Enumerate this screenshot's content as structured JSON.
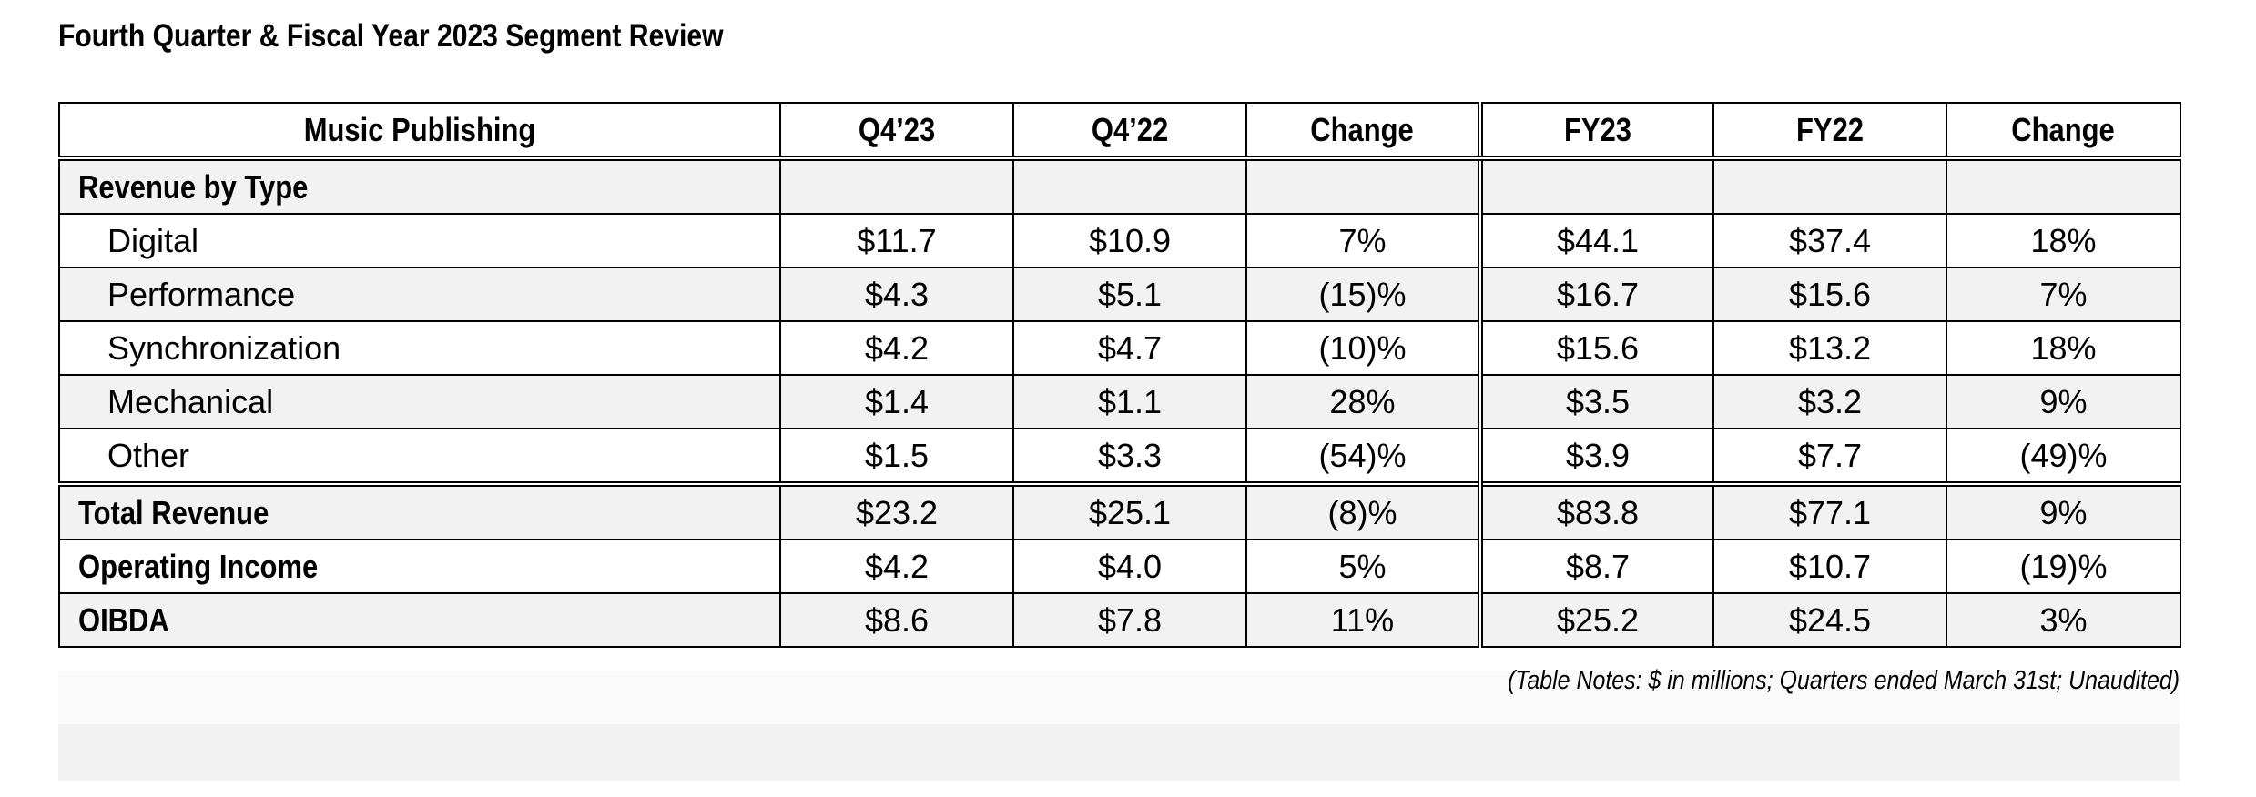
{
  "title": "Fourth Quarter & Fiscal Year 2023 Segment Review",
  "table": {
    "headers": [
      "Music Publishing",
      "Q4’23",
      "Q4’22",
      "Change",
      "FY23",
      "FY22",
      "Change"
    ],
    "section_label": "Revenue by Type",
    "revenue_rows": [
      {
        "label": "Digital",
        "values": [
          "$11.7",
          "$10.9",
          "7%",
          "$44.1",
          "$37.4",
          "18%"
        ]
      },
      {
        "label": "Performance",
        "values": [
          "$4.3",
          "$5.1",
          "(15)%",
          "$16.7",
          "$15.6",
          "7%"
        ]
      },
      {
        "label": "Synchronization",
        "values": [
          "$4.2",
          "$4.7",
          "(10)%",
          "$15.6",
          "$13.2",
          "18%"
        ]
      },
      {
        "label": "Mechanical",
        "values": [
          "$1.4",
          "$1.1",
          "28%",
          "$3.5",
          "$3.2",
          "9%"
        ]
      },
      {
        "label": "Other",
        "values": [
          "$1.5",
          "$3.3",
          "(54)%",
          "$3.9",
          "$7.7",
          "(49)%"
        ]
      }
    ],
    "total_rows": [
      {
        "label": "Total Revenue",
        "values": [
          "$23.2",
          "$25.1",
          "(8)%",
          "$83.8",
          "$77.1",
          "9%"
        ]
      },
      {
        "label": "Operating Income",
        "values": [
          "$4.2",
          "$4.0",
          "5%",
          "$8.7",
          "$10.7",
          "(19)%"
        ]
      },
      {
        "label": "OIBDA",
        "values": [
          "$8.6",
          "$7.8",
          "11%",
          "$25.2",
          "$24.5",
          "3%"
        ]
      }
    ]
  },
  "notes": "(Table Notes: $ in millions; Quarters ended March 31st; Unaudited)",
  "colors": {
    "shade": "#f2f2f2",
    "border": "#000000",
    "text": "#000000"
  }
}
